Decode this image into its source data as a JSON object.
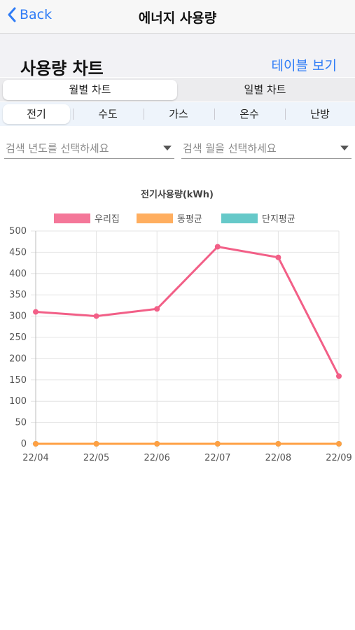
{
  "nav": {
    "back_label": "Back",
    "title": "에너지 사용량"
  },
  "header": {
    "title": "사용량 차트",
    "table_link": "테이블 보기"
  },
  "chart_tabs": [
    {
      "label": "월별 차트",
      "active": true
    },
    {
      "label": "일별 차트",
      "active": false
    }
  ],
  "utility_tabs": [
    {
      "label": "전기",
      "active": true
    },
    {
      "label": "수도",
      "active": false
    },
    {
      "label": "가스",
      "active": false
    },
    {
      "label": "온수",
      "active": false
    },
    {
      "label": "난방",
      "active": false
    }
  ],
  "filters": {
    "year_placeholder": "검색 년도를 선택하세요",
    "month_placeholder": "검색 월을 선택하세요"
  },
  "chart_data": {
    "type": "line",
    "title": "전기사용량(kWh)",
    "categories": [
      "22/04",
      "22/05",
      "22/06",
      "22/07",
      "22/08",
      "22/09"
    ],
    "series": [
      {
        "name": "우리집",
        "values": [
          310,
          300,
          317,
          463,
          438,
          159
        ],
        "color": "#f25f87"
      },
      {
        "name": "동평균",
        "values": [
          0,
          0,
          0,
          0,
          0,
          0
        ],
        "color": "#ffa043"
      },
      {
        "name": "단지평균",
        "values": [
          0,
          0,
          0,
          0,
          0,
          0
        ],
        "color": "#4bbfbf"
      }
    ],
    "ylim": [
      0,
      500
    ],
    "yticks": [
      0,
      50,
      100,
      150,
      200,
      250,
      300,
      350,
      400,
      450,
      500
    ],
    "grid": true,
    "legend": "top"
  }
}
